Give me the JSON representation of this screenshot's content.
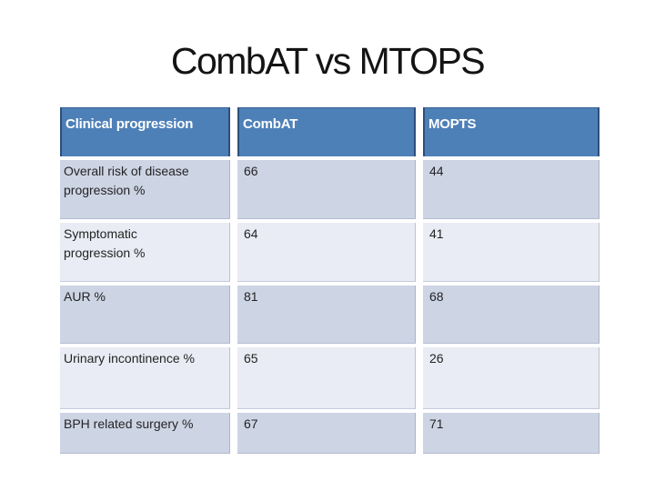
{
  "slide_title": "CombAT vs MTOPS",
  "colors": {
    "background": "#ffffff",
    "title_text": "#141414",
    "header_bg": "#4e80b8",
    "header_edge": "#2d4f7c",
    "header_text": "#ffffff",
    "row_band_dark": "#cdd4e4",
    "row_band_light": "#e9ecf4",
    "body_text": "#242424"
  },
  "table": {
    "columns": [
      {
        "label": "Clinical progression"
      },
      {
        "label": "CombAT"
      },
      {
        "label": "MOPTS"
      }
    ],
    "rows": [
      {
        "label": "Overall risk of disease\nprogression %",
        "combat": "66",
        "mtops": "44"
      },
      {
        "label": "Symptomatic\nprogression %",
        "combat": "64",
        "mtops": "41"
      },
      {
        "label": "AUR %",
        "combat": "81",
        "mtops": "68"
      },
      {
        "label": "Urinary incontinence %",
        "combat": "65",
        "mtops": "26"
      },
      {
        "label": "BPH related surgery %",
        "combat": "67",
        "mtops": "71"
      }
    ]
  }
}
